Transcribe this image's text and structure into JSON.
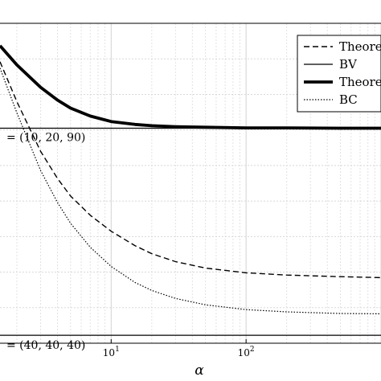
{
  "chart_data": {
    "type": "line",
    "xlabel": "α",
    "x_scale": "log",
    "xlim": [
      1.5,
      1000
    ],
    "ylim": [
      0,
      1
    ],
    "grid": true,
    "x_ticks": [
      {
        "value": 10,
        "base": "10",
        "exp": "1"
      },
      {
        "value": 100,
        "base": "10",
        "exp": "2"
      }
    ],
    "legend": {
      "placement": "top-right",
      "entries": [
        {
          "label": "Theore",
          "style": "dashed"
        },
        {
          "label": "BV",
          "style": "thin"
        },
        {
          "label": "Theore",
          "style": "thick"
        },
        {
          "label": "BC",
          "style": "dotted"
        }
      ]
    },
    "series": [
      {
        "style": "thick",
        "x": [
          1.5,
          2,
          3,
          4,
          5,
          7,
          10,
          15,
          20,
          30,
          50,
          100,
          200,
          500,
          1000
        ],
        "y": [
          0.93,
          0.87,
          0.8,
          0.76,
          0.735,
          0.71,
          0.693,
          0.684,
          0.68,
          0.677,
          0.675,
          0.673,
          0.673,
          0.672,
          0.672
        ]
      },
      {
        "style": "dashed",
        "x": [
          1.5,
          2,
          3,
          4,
          5,
          7,
          10,
          15,
          20,
          30,
          50,
          100,
          200,
          500,
          1000
        ],
        "y": [
          0.88,
          0.755,
          0.6,
          0.515,
          0.46,
          0.4,
          0.35,
          0.305,
          0.28,
          0.255,
          0.235,
          0.22,
          0.213,
          0.208,
          0.205
        ]
      },
      {
        "style": "dotted",
        "x": [
          1.5,
          2,
          3,
          4,
          5,
          7,
          10,
          15,
          20,
          30,
          50,
          100,
          200,
          500,
          1000
        ],
        "y": [
          0.86,
          0.72,
          0.54,
          0.44,
          0.375,
          0.3,
          0.24,
          0.19,
          0.165,
          0.14,
          0.12,
          0.105,
          0.098,
          0.093,
          0.092
        ]
      },
      {
        "style": "thin",
        "x": [
          1.5,
          1000
        ],
        "y": [
          0.672,
          0.672
        ]
      },
      {
        "style": "thin",
        "x": [
          1.5,
          1000
        ],
        "y": [
          0.025,
          0.025
        ]
      }
    ],
    "annotations": [
      {
        "text": "= (10, 20, 90)",
        "x": 1.5,
        "y": 0.645
      },
      {
        "text": "= (40, 40, 40)",
        "x": 1.5,
        "y": -0.005
      }
    ]
  }
}
